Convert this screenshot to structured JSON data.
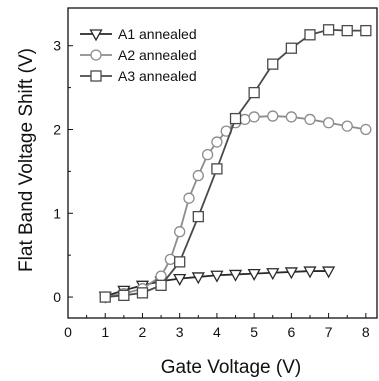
{
  "chart_data": {
    "type": "line",
    "xlabel": "Gate Voltage (V)",
    "ylabel": "Flat Band Voltage Shift (V)",
    "xlim": [
      0,
      8.3
    ],
    "ylim": [
      -0.25,
      3.45
    ],
    "xticks": [
      0,
      1,
      2,
      3,
      4,
      5,
      6,
      7,
      8
    ],
    "yticks": [
      0,
      1,
      2,
      3
    ],
    "grid": false,
    "legend_position": "top-left",
    "series": [
      {
        "name": "A1 annealed",
        "marker": "triangle-down",
        "color": "#2a2a2a",
        "x": [
          1,
          1.5,
          2,
          2.5,
          3,
          3.5,
          4,
          4.5,
          5,
          5.5,
          6,
          6.5,
          7
        ],
        "y": [
          0.01,
          0.08,
          0.14,
          0.19,
          0.22,
          0.24,
          0.26,
          0.27,
          0.28,
          0.29,
          0.3,
          0.31,
          0.31
        ]
      },
      {
        "name": "A2 annealed",
        "marker": "circle",
        "color": "#8c8c8c",
        "x": [
          1,
          1.5,
          2,
          2.5,
          2.75,
          3,
          3.25,
          3.5,
          3.75,
          4,
          4.25,
          4.5,
          4.75,
          5,
          5.5,
          6,
          6.5,
          7,
          7.5,
          8
        ],
        "y": [
          0.0,
          0.04,
          0.1,
          0.25,
          0.45,
          0.78,
          1.18,
          1.45,
          1.7,
          1.85,
          1.98,
          2.08,
          2.12,
          2.15,
          2.16,
          2.15,
          2.12,
          2.08,
          2.04,
          2.0
        ]
      },
      {
        "name": "A3 annealed",
        "marker": "square",
        "color": "#4a4a4a",
        "x": [
          1,
          1.5,
          2,
          2.5,
          3,
          3.5,
          4,
          4.5,
          5,
          5.5,
          6,
          6.5,
          7,
          7.5,
          8
        ],
        "y": [
          0.0,
          0.02,
          0.05,
          0.14,
          0.42,
          0.96,
          1.53,
          2.13,
          2.44,
          2.78,
          2.97,
          3.13,
          3.19,
          3.18,
          3.18
        ]
      }
    ]
  }
}
